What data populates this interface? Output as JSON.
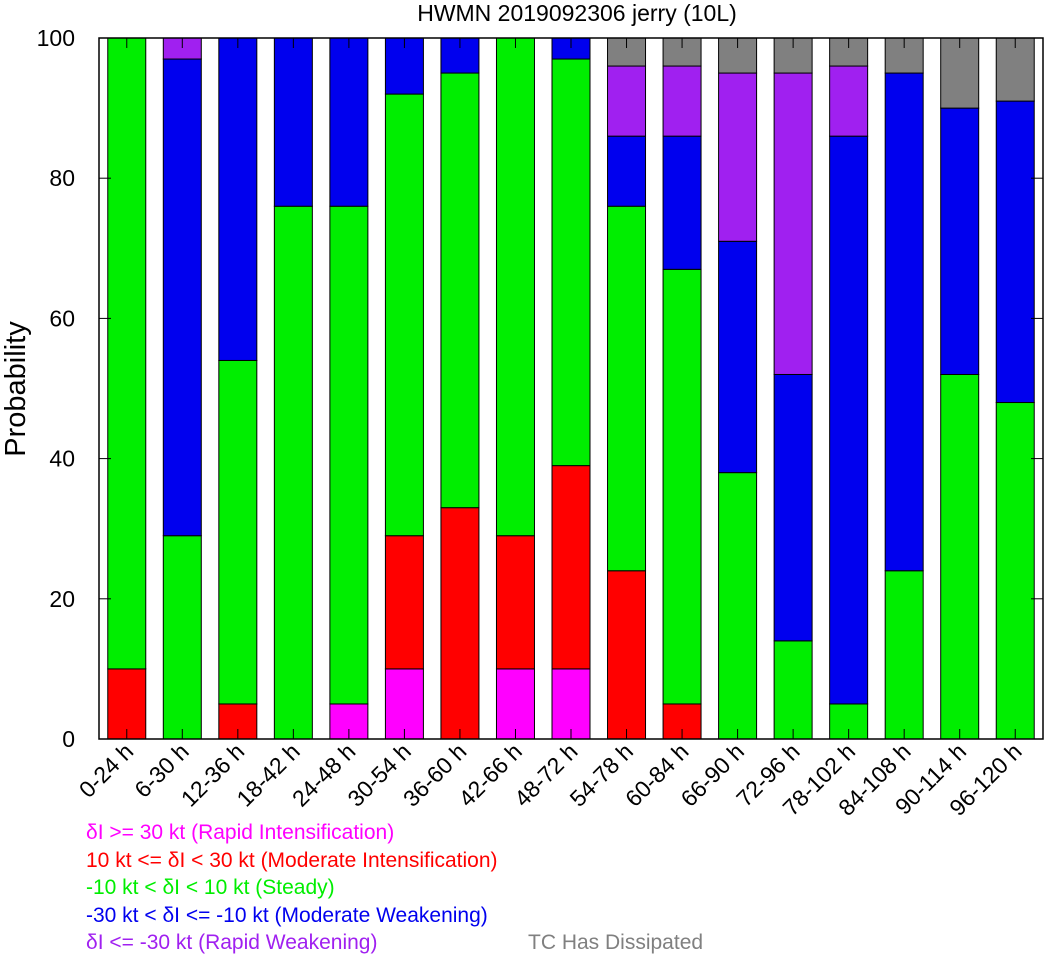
{
  "chart_data": {
    "type": "bar",
    "stacked": true,
    "title": "HWMN 2019092306 jerry (10L)",
    "xlabel": "",
    "ylabel": "Probability",
    "ylim": [
      0,
      100
    ],
    "yticks": [
      0,
      20,
      40,
      60,
      80,
      100
    ],
    "grid": false,
    "categories": [
      "0-24 h",
      "6-30 h",
      "12-36 h",
      "18-42 h",
      "24-48 h",
      "30-54 h",
      "36-60 h",
      "42-66 h",
      "48-72 h",
      "54-78 h",
      "60-84 h",
      "66-90 h",
      "72-96 h",
      "78-102 h",
      "84-108 h",
      "90-114 h",
      "96-120 h"
    ],
    "series": [
      {
        "name": "δI >= 30 kt (Rapid Intensification)",
        "color": "#ff00ff",
        "values": [
          0,
          0,
          0,
          0,
          5,
          10,
          0,
          10,
          10,
          0,
          0,
          0,
          0,
          0,
          0,
          0,
          0
        ]
      },
      {
        "name": "10 kt <= δI < 30 kt (Moderate Intensification)",
        "color": "#ff0000",
        "values": [
          10,
          0,
          5,
          0,
          0,
          19,
          33,
          19,
          29,
          24,
          5,
          0,
          0,
          0,
          0,
          0,
          0
        ]
      },
      {
        "name": "-10 kt < δI < 10 kt (Steady)",
        "color": "#00ee00",
        "values": [
          90,
          29,
          49,
          76,
          71,
          63,
          62,
          71,
          58,
          52,
          62,
          38,
          14,
          5,
          24,
          52,
          48
        ]
      },
      {
        "name": "-30 kt < δI <= -10 kt (Moderate Weakening)",
        "color": "#0000ee",
        "values": [
          0,
          68,
          46,
          24,
          24,
          8,
          5,
          0,
          3,
          10,
          19,
          33,
          38,
          81,
          71,
          38,
          43
        ]
      },
      {
        "name": "δI <= -30 kt (Rapid Weakening)",
        "color": "#a020f0",
        "values": [
          0,
          3,
          0,
          0,
          0,
          0,
          0,
          0,
          0,
          10,
          10,
          24,
          43,
          10,
          0,
          0,
          0
        ]
      },
      {
        "name": "TC Has Dissipated",
        "color": "#808080",
        "values": [
          0,
          0,
          0,
          0,
          0,
          0,
          0,
          0,
          0,
          4,
          4,
          5,
          5,
          4,
          5,
          10,
          9
        ]
      }
    ]
  },
  "legend": {
    "ri": {
      "prefix": "δ",
      "text": "I >= 30 kt (Rapid Intensification)",
      "color": "#ff00ff"
    },
    "mi": {
      "text1": "10 kt <= ",
      "prefix": "δ",
      "text2": "I < 30 kt (Moderate Intensification)",
      "color": "#ff0000"
    },
    "steady": {
      "text1": "-10 kt < ",
      "prefix": "δ",
      "text2": "I < 10 kt (Steady)",
      "color": "#00ee00"
    },
    "mw": {
      "text1": "-30 kt < ",
      "prefix": "δ",
      "text2": "I <= -10 kt (Moderate Weakening)",
      "color": "#0000ee"
    },
    "rw": {
      "prefix": "δ",
      "text": "I <= -30 kt (Rapid Weakening)",
      "color": "#a020f0"
    },
    "dissipated": {
      "text": "TC Has Dissipated",
      "color": "#808080"
    }
  }
}
